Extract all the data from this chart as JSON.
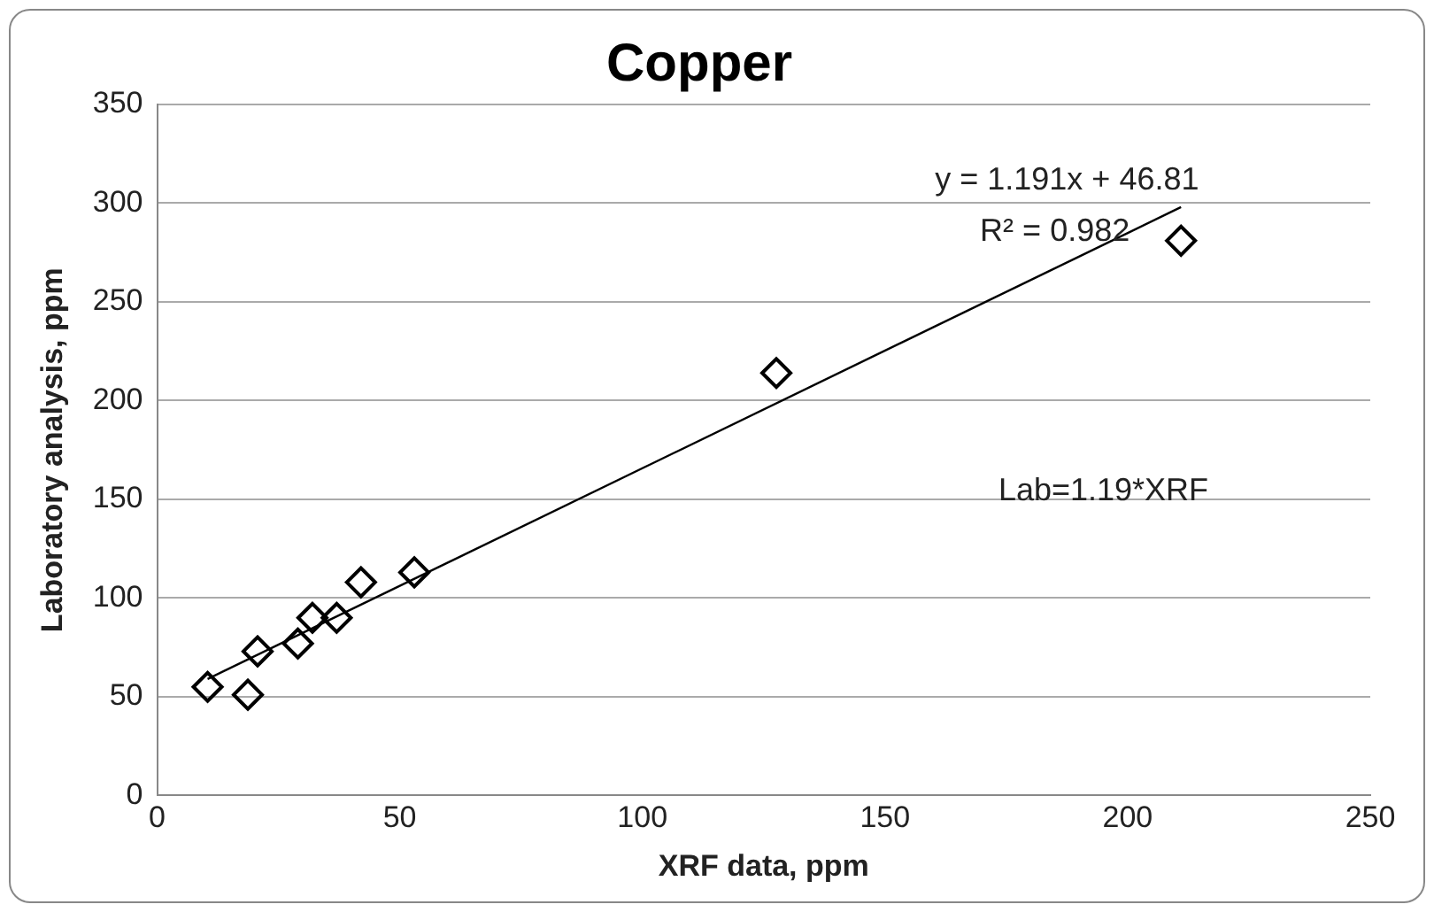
{
  "chart_data": {
    "type": "scatter",
    "title": "Copper",
    "xlabel": "XRF data, ppm",
    "ylabel": "Laboratory analysis, ppm",
    "series": [
      {
        "color": "#000000",
        "marker": "diamond",
        "x": [
          10.4,
          18.7,
          20.7,
          29,
          32,
          37,
          42,
          53,
          127.6,
          211
        ],
        "values": [
          55,
          51,
          73,
          77,
          90,
          90,
          108,
          113,
          214,
          281
        ]
      },
      {
        "type": "line",
        "color": "#000000",
        "marker": "none",
        "x": [
          10.4,
          211
        ],
        "values": [
          59,
          298
        ]
      }
    ],
    "xlim": [
      0,
      250
    ],
    "xticks": [
      0,
      50,
      100,
      150,
      200,
      250
    ],
    "ylim": [
      0,
      350
    ],
    "yticks": [
      0,
      50,
      100,
      150,
      200,
      250,
      300,
      350
    ],
    "grid": "y",
    "legend": false,
    "annotations": [
      "y = 1.191x + 46.81",
      "R² = 0.982",
      "Lab=1.19*XRF"
    ]
  }
}
